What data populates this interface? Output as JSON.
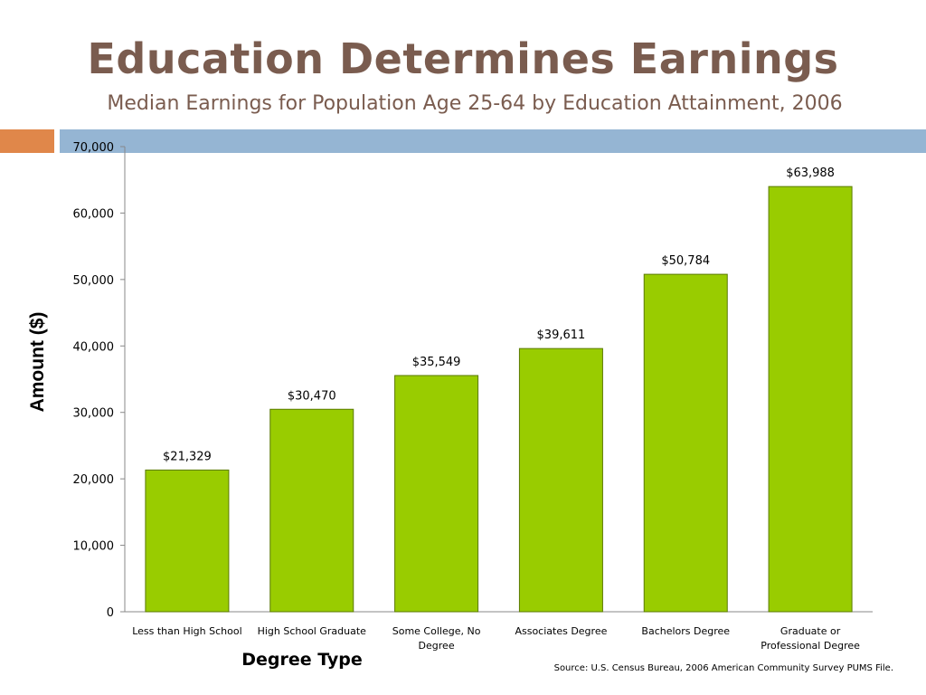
{
  "title": "Education Determines Earnings",
  "subtitle": "Median Earnings for Population Age 25-64 by Education Attainment, 2006",
  "source": "Source:  U.S. Census Bureau, 2006 American Community Survey PUMS File.",
  "colors": {
    "title": "#7a5c4f",
    "accent_orange": "#e0874a",
    "accent_blue": "#95b5d3",
    "bar_fill": "#99cc00",
    "bar_stroke": "#5a7a00"
  },
  "chart_data": {
    "type": "bar",
    "title": "",
    "xlabel": "Degree Type",
    "ylabel": "Amount ($)",
    "ylim": [
      0,
      70000
    ],
    "yticks": [
      0,
      10000,
      20000,
      30000,
      40000,
      50000,
      60000,
      70000
    ],
    "ytick_labels": [
      "0",
      "10,000",
      "20,000",
      "30,000",
      "40,000",
      "50,000",
      "60,000",
      "70,000"
    ],
    "categories": [
      [
        "Less than High School"
      ],
      [
        "High School Graduate"
      ],
      [
        "Some College, No",
        "Degree"
      ],
      [
        "Associates Degree"
      ],
      [
        "Bachelors Degree"
      ],
      [
        "Graduate or",
        "Professional Degree"
      ]
    ],
    "values": [
      21329,
      30470,
      35549,
      39611,
      50784,
      63988
    ],
    "data_labels": [
      "$21,329",
      "$30,470",
      "$35,549",
      "$39,611",
      "$50,784",
      "$63,988"
    ],
    "grid": false,
    "legend": "none"
  }
}
